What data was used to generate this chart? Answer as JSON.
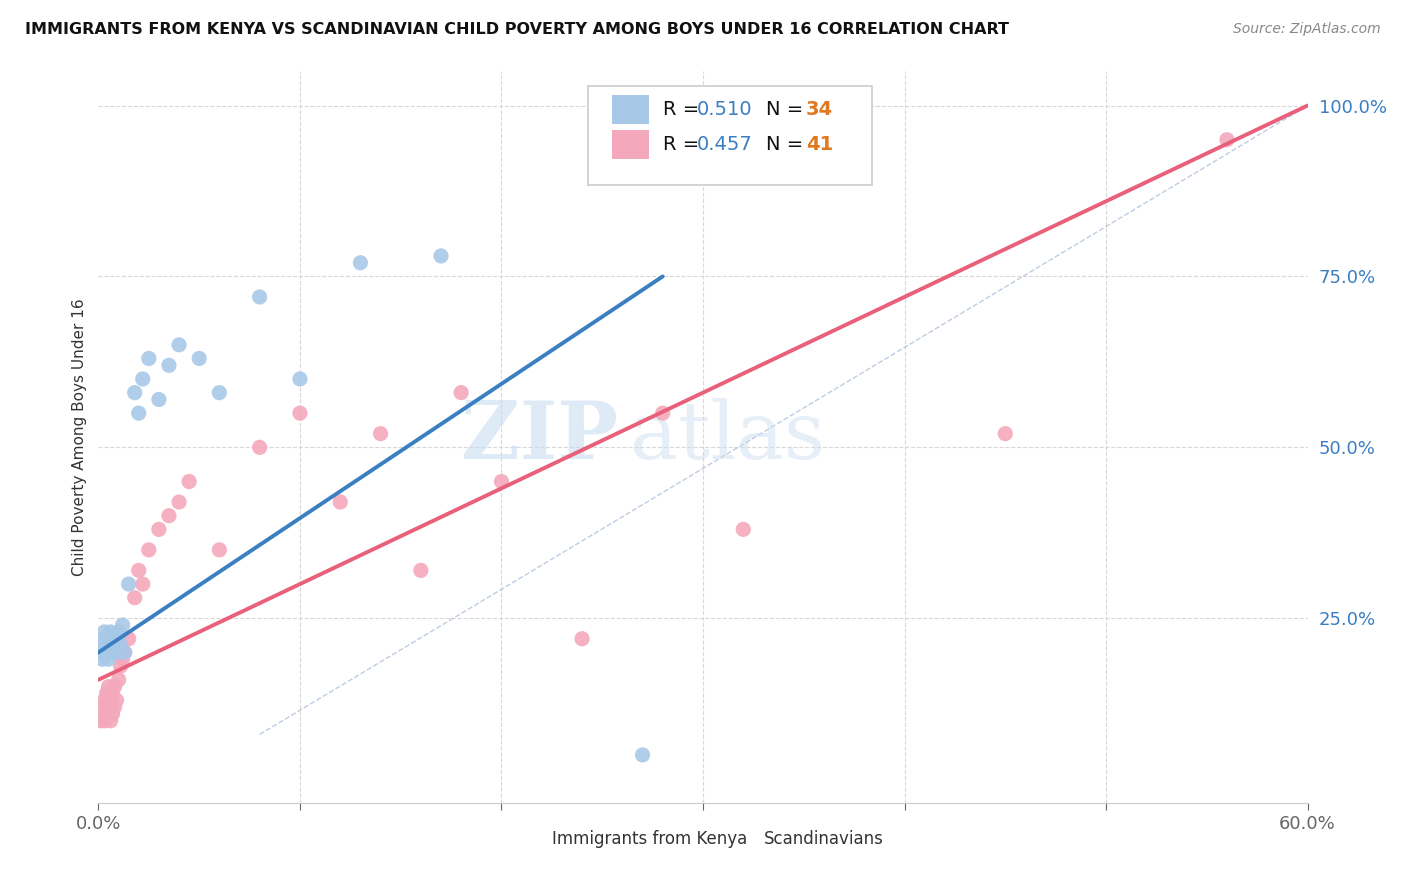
{
  "title": "IMMIGRANTS FROM KENYA VS SCANDINAVIAN CHILD POVERTY AMONG BOYS UNDER 16 CORRELATION CHART",
  "source": "Source: ZipAtlas.com",
  "ylabel": "Child Poverty Among Boys Under 16",
  "yticks": [
    0.0,
    0.25,
    0.5,
    0.75,
    1.0
  ],
  "ytick_labels": [
    "",
    "25.0%",
    "50.0%",
    "75.0%",
    "100.0%"
  ],
  "xlim": [
    0.0,
    0.6
  ],
  "ylim": [
    -0.02,
    1.05
  ],
  "watermark_zip": "ZIP",
  "watermark_atlas": "atlas",
  "legend_r1": "R = ",
  "legend_r1_val": "0.510",
  "legend_n1": "  N = ",
  "legend_n1_val": "34",
  "legend_r2": "R = ",
  "legend_r2_val": "0.457",
  "legend_n2": "  N = ",
  "legend_n2_val": "41",
  "color_blue_fill": "#a8c8e8",
  "color_pink_fill": "#f4a8bc",
  "color_blue_line": "#3a7fc1",
  "color_pink_line": "#e8607a",
  "color_blue_text": "#3a7fc1",
  "color_orange_text": "#e07820",
  "legend_label1": "Immigrants from Kenya",
  "legend_label2": "Scandinavians",
  "blue_x": [
    0.001,
    0.002,
    0.002,
    0.003,
    0.003,
    0.004,
    0.004,
    0.005,
    0.005,
    0.006,
    0.006,
    0.007,
    0.008,
    0.009,
    0.01,
    0.01,
    0.011,
    0.012,
    0.013,
    0.015,
    0.018,
    0.02,
    0.022,
    0.025,
    0.03,
    0.035,
    0.04,
    0.05,
    0.06,
    0.08,
    0.1,
    0.13,
    0.17,
    0.27
  ],
  "blue_y": [
    0.2,
    0.19,
    0.21,
    0.22,
    0.23,
    0.2,
    0.21,
    0.22,
    0.19,
    0.21,
    0.23,
    0.2,
    0.21,
    0.2,
    0.22,
    0.23,
    0.21,
    0.24,
    0.2,
    0.3,
    0.58,
    0.55,
    0.6,
    0.63,
    0.57,
    0.62,
    0.65,
    0.63,
    0.58,
    0.72,
    0.6,
    0.77,
    0.78,
    0.05
  ],
  "pink_x": [
    0.001,
    0.002,
    0.003,
    0.003,
    0.004,
    0.004,
    0.005,
    0.005,
    0.006,
    0.006,
    0.007,
    0.007,
    0.008,
    0.008,
    0.009,
    0.01,
    0.011,
    0.012,
    0.013,
    0.015,
    0.018,
    0.02,
    0.022,
    0.025,
    0.03,
    0.035,
    0.04,
    0.045,
    0.06,
    0.08,
    0.1,
    0.12,
    0.14,
    0.16,
    0.18,
    0.2,
    0.24,
    0.28,
    0.32,
    0.45,
    0.56
  ],
  "pink_y": [
    0.1,
    0.12,
    0.1,
    0.13,
    0.11,
    0.14,
    0.12,
    0.15,
    0.1,
    0.13,
    0.11,
    0.14,
    0.12,
    0.15,
    0.13,
    0.16,
    0.18,
    0.19,
    0.2,
    0.22,
    0.28,
    0.32,
    0.3,
    0.35,
    0.38,
    0.4,
    0.42,
    0.45,
    0.35,
    0.5,
    0.55,
    0.42,
    0.52,
    0.32,
    0.58,
    0.45,
    0.22,
    0.55,
    0.38,
    0.52,
    0.95
  ],
  "blue_line_x": [
    0.0,
    0.28
  ],
  "blue_line_y": [
    0.2,
    0.75
  ],
  "pink_line_x": [
    0.0,
    0.6
  ],
  "pink_line_y": [
    0.16,
    1.0
  ],
  "ref_line_x": [
    0.08,
    0.6
  ],
  "ref_line_y": [
    0.08,
    1.0
  ],
  "background_color": "#ffffff",
  "grid_color": "#d8d8d8"
}
